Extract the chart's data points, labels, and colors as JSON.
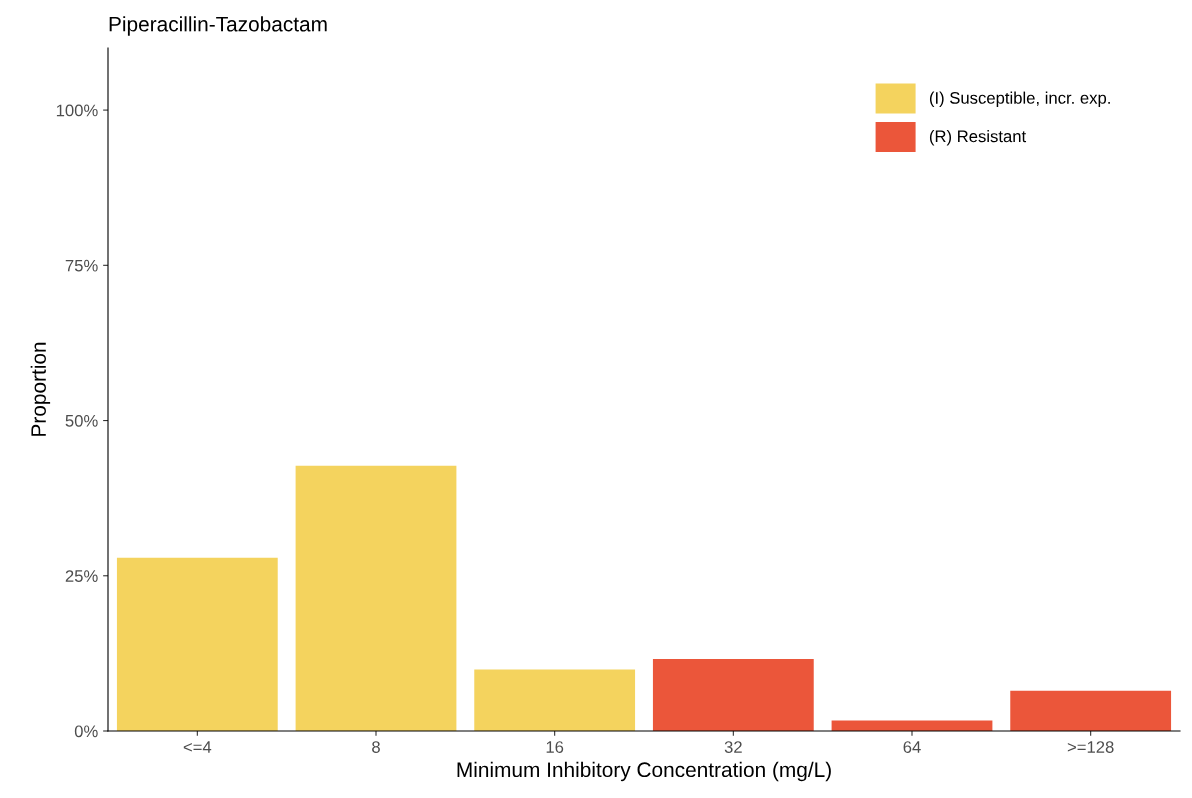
{
  "chart_data": {
    "type": "bar",
    "title": "Piperacillin-Tazobactam",
    "xlabel": "Minimum Inhibitory Concentration (mg/L)",
    "ylabel": "Proportion",
    "categories": [
      "<=4",
      "8",
      "16",
      "32",
      "64",
      ">=128"
    ],
    "series": [
      {
        "name": "(I) Susceptible, incr. exp.",
        "color": "#f4d35e",
        "values": [
          27.9,
          42.7,
          9.9,
          null,
          null,
          null
        ]
      },
      {
        "name": "(R) Resistant",
        "color": "#eb563a",
        "values": [
          null,
          null,
          null,
          11.6,
          1.7,
          6.5
        ]
      }
    ],
    "ylim": [
      0,
      110
    ],
    "yticks": [
      {
        "value": 0,
        "label": "0%"
      },
      {
        "value": 25,
        "label": "25%"
      },
      {
        "value": 50,
        "label": "50%"
      },
      {
        "value": 75,
        "label": "75%"
      },
      {
        "value": 100,
        "label": "100%"
      }
    ],
    "grid": false,
    "legend": "top right"
  }
}
